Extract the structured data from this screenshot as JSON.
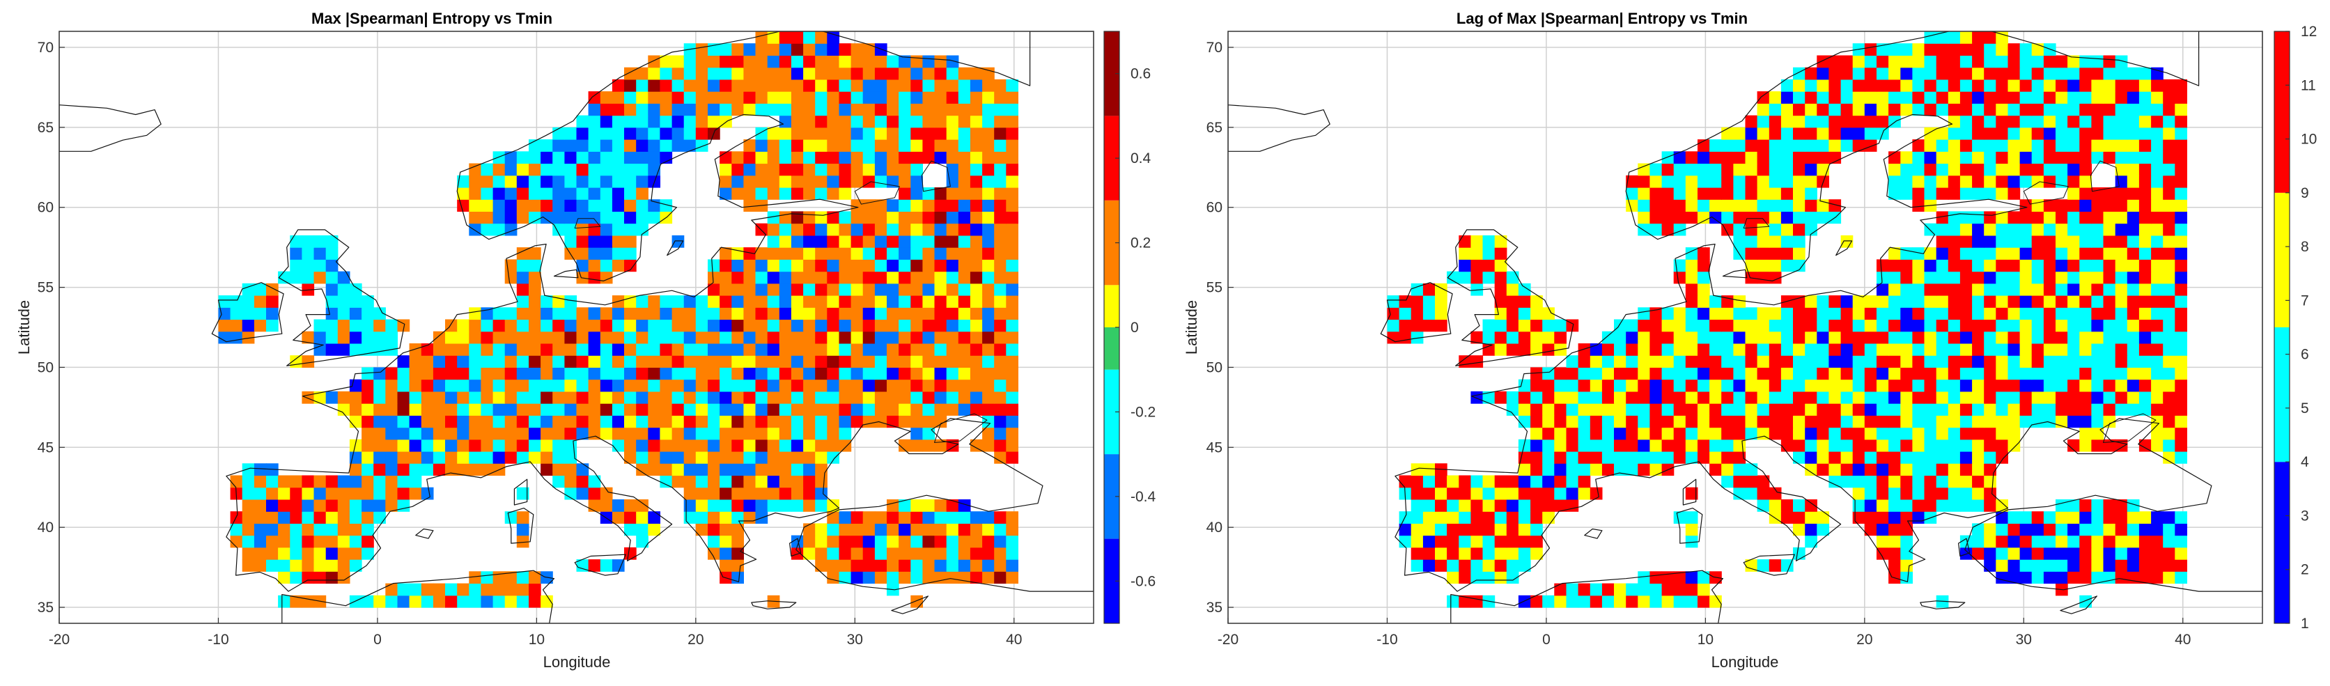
{
  "chart_data": [
    {
      "type": "heatmap",
      "title": "Max |Spearman| Entropy vs Tmin",
      "xlabel": "Longitude",
      "ylabel": "Latitude",
      "xlim": [
        -20,
        45
      ],
      "ylim": [
        34,
        71
      ],
      "xticks": [
        "-20",
        "-10",
        "0",
        "10",
        "20",
        "30",
        "40"
      ],
      "yticks": [
        "35",
        "40",
        "45",
        "50",
        "55",
        "60",
        "65",
        "70"
      ],
      "grid": true,
      "colorbar": {
        "range": [
          -0.7,
          0.7
        ],
        "ticks": [
          "-0.6",
          "-0.4",
          "-0.2",
          "0",
          "0.2",
          "0.4",
          "0.6"
        ],
        "bins": [
          {
            "from": -0.7,
            "to": -0.5,
            "color": "#0000ff"
          },
          {
            "from": -0.5,
            "to": -0.3,
            "color": "#0077ff"
          },
          {
            "from": -0.3,
            "to": -0.1,
            "color": "#00ffff"
          },
          {
            "from": -0.1,
            "to": 0.0,
            "color": "#33cc66"
          },
          {
            "from": 0.0,
            "to": 0.1,
            "color": "#ffff00"
          },
          {
            "from": 0.1,
            "to": 0.3,
            "color": "#ff8000"
          },
          {
            "from": 0.3,
            "to": 0.5,
            "color": "#ff0000"
          },
          {
            "from": 0.5,
            "to": 0.7,
            "color": "#990000"
          }
        ]
      },
      "dominant_values": "mixture of roughly -0.4 to -0.2 and 0.1 to 0.3 across the grid; negative values concentrated in western/central Scandinavia and Britain, positive values dominant in eastern Europe, Finland and Spain"
    },
    {
      "type": "heatmap",
      "title": "Lag of Max |Spearman| Entropy vs Tmin",
      "xlabel": "Longitude",
      "ylabel": "Latitude",
      "xlim": [
        -20,
        45
      ],
      "ylim": [
        34,
        71
      ],
      "xticks": [
        "-20",
        "-10",
        "0",
        "10",
        "20",
        "30",
        "40"
      ],
      "yticks": [
        "35",
        "40",
        "45",
        "50",
        "55",
        "60",
        "65",
        "70"
      ],
      "grid": true,
      "colorbar": {
        "range": [
          1,
          12
        ],
        "ticks": [
          "1",
          "2",
          "3",
          "4",
          "5",
          "6",
          "7",
          "8",
          "9",
          "10",
          "11",
          "12"
        ],
        "bins": [
          {
            "from": 1,
            "to": 4,
            "color": "#0000ff"
          },
          {
            "from": 4,
            "to": 6.5,
            "color": "#00ffff"
          },
          {
            "from": 6.5,
            "to": 9,
            "color": "#ffff00"
          },
          {
            "from": 9,
            "to": 12,
            "color": "#ff0000"
          }
        ]
      },
      "dominant_values": "mixture of lags 4-6, 7-9 and 10-12 everywhere; lags 1-3 appear in Turkey and scattered cells"
    }
  ],
  "region": {
    "lon_min": -10,
    "lon_max": 40,
    "lat_min": 35,
    "lat_max": 71,
    "cell_deg": 0.75
  }
}
